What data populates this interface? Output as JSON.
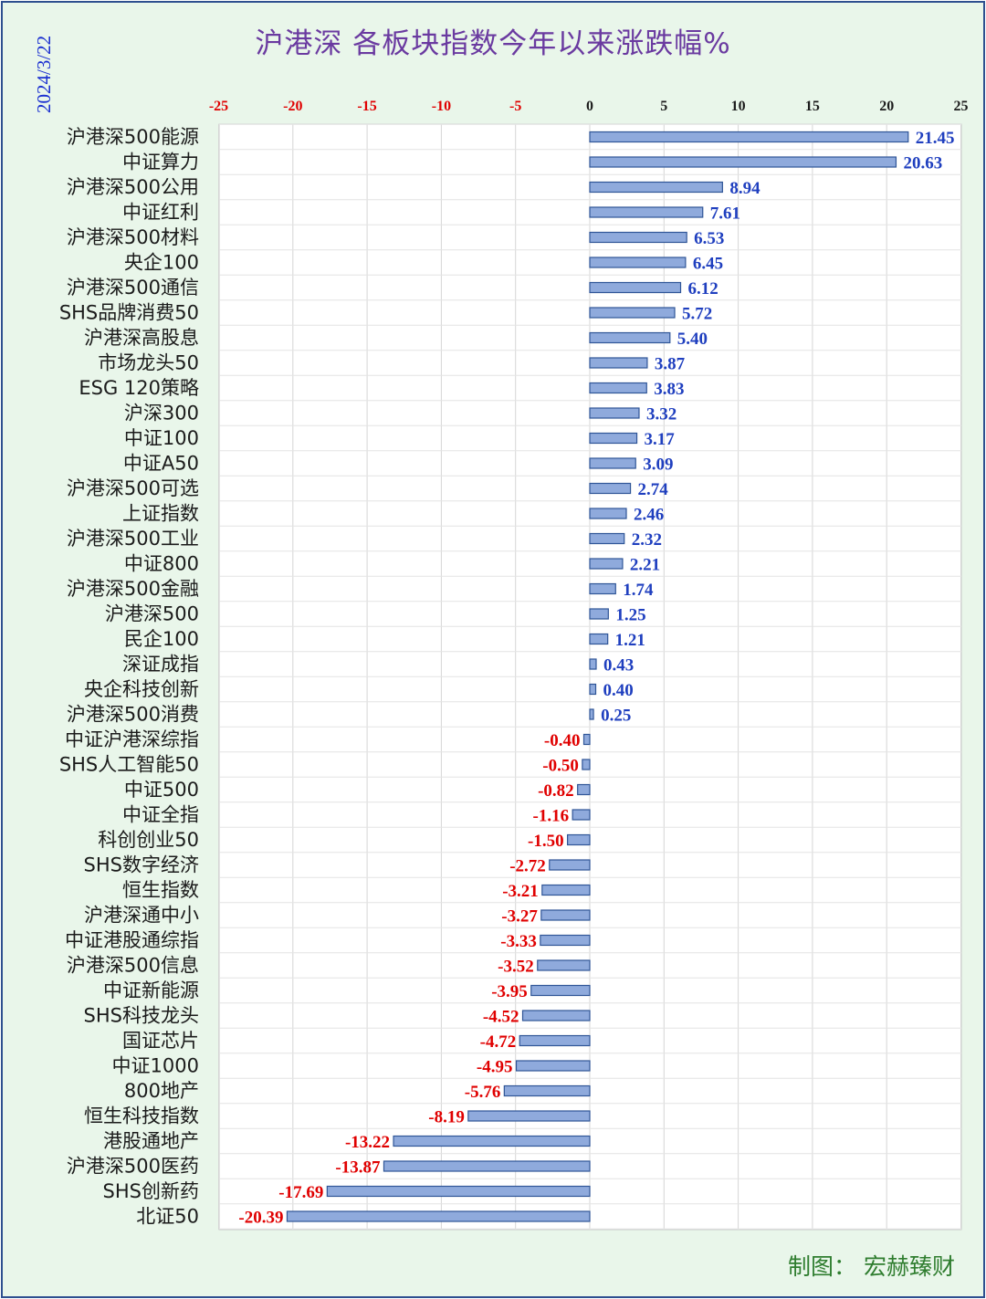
{
  "title": "沪港深 各板块指数今年以来涨跌幅%",
  "date": "2024/3/22",
  "credit": "制图：  宏赫臻财",
  "colors": {
    "bar_fill": "#8faadc",
    "bar_stroke": "#2f5597",
    "positive_text": "#1f3fbf",
    "negative_text": "#e00000",
    "grid": "#d6d6d6",
    "plot_bg": "#ffffff"
  },
  "chart_data": {
    "type": "bar",
    "orientation": "horizontal",
    "axis_position": "top",
    "xlim": [
      -25,
      25
    ],
    "ticks": [
      -25,
      -20,
      -15,
      -10,
      -5,
      0,
      5,
      10,
      15,
      20,
      25
    ],
    "grid": true,
    "categories": [
      "沪港深500能源",
      "中证算力",
      "沪港深500公用",
      "中证红利",
      "沪港深500材料",
      "央企100",
      "沪港深500通信",
      "SHS品牌消费50",
      "沪港深高股息",
      "市场龙头50",
      "ESG 120策略",
      "沪深300",
      "中证100",
      "中证A50",
      "沪港深500可选",
      "上证指数",
      "沪港深500工业",
      "中证800",
      "沪港深500金融",
      "沪港深500",
      "民企100",
      "深证成指",
      "央企科技创新",
      "沪港深500消费",
      "中证沪港深综指",
      "SHS人工智能50",
      "中证500",
      "中证全指",
      "科创创业50",
      "SHS数字经济",
      "恒生指数",
      "沪港深通中小",
      "中证港股通综指",
      "沪港深500信息",
      "中证新能源",
      "SHS科技龙头",
      "国证芯片",
      "中证1000",
      "800地产",
      "恒生科技指数",
      "港股通地产",
      "沪港深500医药",
      "SHS创新药",
      "北证50"
    ],
    "values": [
      21.45,
      20.63,
      8.94,
      7.61,
      6.53,
      6.45,
      6.12,
      5.72,
      5.4,
      3.87,
      3.83,
      3.32,
      3.17,
      3.09,
      2.74,
      2.46,
      2.32,
      2.21,
      1.74,
      1.25,
      1.21,
      0.43,
      0.4,
      0.25,
      -0.4,
      -0.5,
      -0.82,
      -1.16,
      -1.5,
      -2.72,
      -3.21,
      -3.27,
      -3.33,
      -3.52,
      -3.95,
      -4.52,
      -4.72,
      -4.95,
      -5.76,
      -8.19,
      -13.22,
      -13.87,
      -17.69,
      -20.39
    ]
  }
}
